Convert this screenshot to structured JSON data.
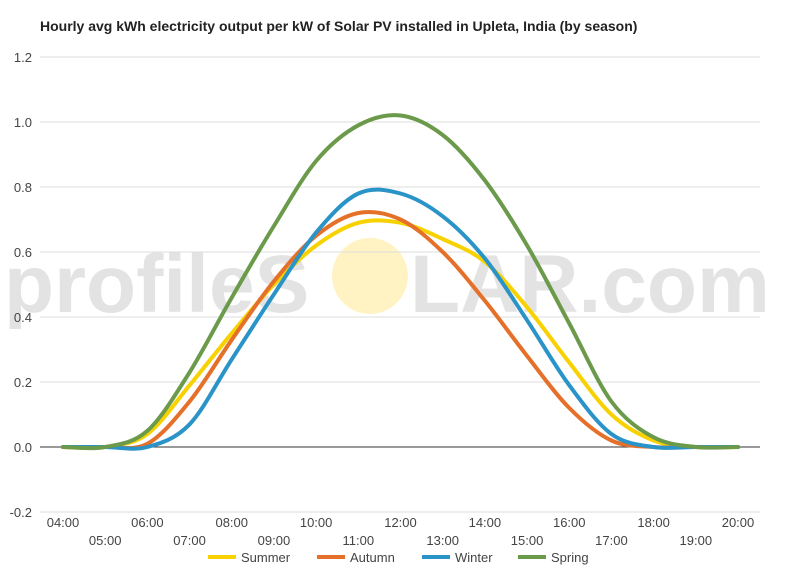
{
  "chart_data": {
    "type": "line",
    "title": "Hourly avg kWh electricity output per kW of Solar PV installed in Upleta, India (by season)",
    "xlabel": "",
    "ylabel": "",
    "ylim": [
      -0.2,
      1.2
    ],
    "yticks": [
      -0.2,
      0.0,
      0.2,
      0.4,
      0.6,
      0.8,
      1.0,
      1.2
    ],
    "ytick_labels": [
      "-0.2",
      "0.0",
      "0.2",
      "0.4",
      "0.6",
      "0.8",
      "1.0",
      "1.2"
    ],
    "categories": [
      "04:00",
      "05:00",
      "06:00",
      "07:00",
      "08:00",
      "09:00",
      "10:00",
      "11:00",
      "12:00",
      "13:00",
      "14:00",
      "15:00",
      "16:00",
      "17:00",
      "18:00",
      "19:00",
      "20:00"
    ],
    "grid": true,
    "legend_position": "bottom",
    "series": [
      {
        "name": "Summer",
        "color": "#f7d200",
        "values": [
          0,
          0,
          0.04,
          0.19,
          0.35,
          0.5,
          0.62,
          0.69,
          0.69,
          0.64,
          0.57,
          0.43,
          0.26,
          0.1,
          0.02,
          0,
          0
        ]
      },
      {
        "name": "Autumn",
        "color": "#e5702a",
        "values": [
          0,
          0,
          0.01,
          0.14,
          0.33,
          0.51,
          0.65,
          0.72,
          0.7,
          0.6,
          0.45,
          0.28,
          0.12,
          0.02,
          0,
          0,
          0
        ]
      },
      {
        "name": "Winter",
        "color": "#2a93c8",
        "values": [
          0,
          0,
          0,
          0.07,
          0.27,
          0.47,
          0.66,
          0.78,
          0.78,
          0.71,
          0.58,
          0.39,
          0.19,
          0.04,
          0,
          0,
          0
        ]
      },
      {
        "name": "Spring",
        "color": "#6b9a4b",
        "values": [
          0,
          0,
          0.05,
          0.23,
          0.46,
          0.68,
          0.88,
          0.99,
          1.02,
          0.96,
          0.82,
          0.62,
          0.38,
          0.14,
          0.03,
          0,
          0
        ]
      }
    ]
  },
  "watermark": {
    "text_left": "profileS",
    "text_right": "LAR.com",
    "sun_color": "#fff3c4"
  }
}
